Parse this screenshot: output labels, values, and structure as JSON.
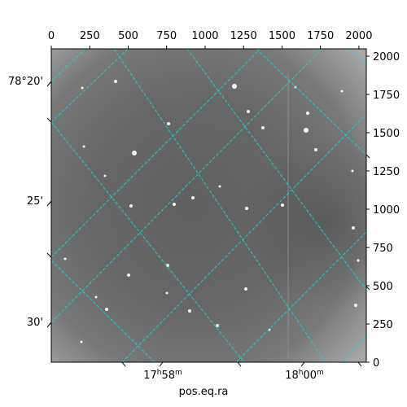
{
  "chart_data": {
    "type": "image",
    "image_kind": "astronomical image with celestial coordinate grid overlay",
    "colormap": "grayscale",
    "grid_color": "#00e0e0",
    "grid_style": "dashed",
    "top_axis": {
      "label": "",
      "ticks": [
        "0",
        "250",
        "500",
        "750",
        "1000",
        "1250",
        "1500",
        "1750",
        "2000"
      ],
      "range": [
        0,
        2048
      ]
    },
    "right_axis": {
      "label": "",
      "ticks": [
        "0",
        "250",
        "500",
        "750",
        "1000",
        "1250",
        "1500",
        "1750",
        "2000"
      ],
      "range": [
        0,
        2048
      ]
    },
    "left_axis": {
      "label": "",
      "ticks": [
        "78°20'",
        "25'",
        "30'"
      ]
    },
    "bottom_axis": {
      "label": "pos.eq.ra",
      "ticks": [
        {
          "hours": "17",
          "minutes": "58"
        },
        {
          "hours": "18",
          "minutes": "00"
        }
      ]
    }
  }
}
